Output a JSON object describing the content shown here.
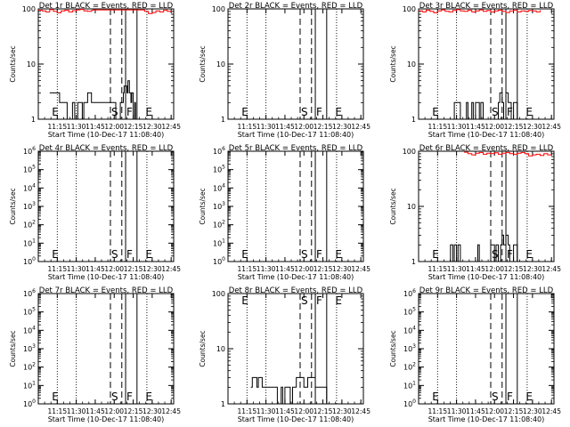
{
  "page": {
    "xlabel": "Start Time (10-Dec-17 11:08:40)",
    "ylabel": "Counts/sec",
    "x_ticks": [
      "11:15",
      "11:30",
      "11:45",
      "12:00",
      "12:15",
      "12:30",
      "12:45"
    ],
    "marker_labels": [
      "E",
      "S",
      "F",
      "E"
    ],
    "colors": {
      "events": "#000000",
      "lld": "#ff0000",
      "background": "#ffffff"
    }
  },
  "chart_data": [
    {
      "type": "line",
      "title": "Det 1r BLACK = Events, RED = LLD",
      "y_scale": "log",
      "ylim": [
        1,
        100
      ],
      "yticks": [
        {
          "v": 1,
          "label": "1"
        },
        {
          "v": 10,
          "label": "10"
        },
        {
          "v": 100,
          "label": "100"
        }
      ],
      "markers": [
        {
          "label": "E",
          "t": 11.167
        },
        {
          "label": "S",
          "t": 11.95
        },
        {
          "label": "F",
          "t": 12.15
        },
        {
          "label": "E",
          "t": 12.4
        }
      ],
      "series": [
        {
          "role": "events",
          "x": [
            11.15,
            11.2,
            11.23,
            11.25,
            11.27,
            11.28,
            11.33,
            11.35,
            11.38,
            11.42,
            11.45,
            11.48,
            11.52,
            11.55,
            11.58,
            11.6,
            11.62,
            11.65,
            11.7,
            11.75,
            11.8,
            11.85,
            11.9,
            11.95,
            12.0,
            12.02,
            12.05,
            12.07,
            12.08,
            12.1,
            12.12,
            12.13,
            12.15,
            12.17,
            12.18,
            12.2,
            12.22,
            12.23,
            12.25,
            12.27,
            12.28,
            12.3,
            12.35
          ],
          "y": [
            3,
            3,
            3,
            3,
            3,
            2,
            2,
            2,
            1,
            1,
            2,
            1,
            2,
            2,
            1,
            2,
            2,
            3,
            2,
            2,
            2,
            2,
            2,
            2,
            2,
            1,
            1,
            1,
            2,
            2,
            3,
            4,
            4,
            3,
            5,
            3,
            2,
            3,
            1,
            2,
            1,
            1,
            1
          ]
        },
        {
          "role": "lld",
          "x": [
            11.0,
            11.05,
            11.1,
            11.15,
            11.2,
            11.25,
            11.3,
            11.35,
            11.4,
            11.45,
            11.5,
            11.55,
            11.6,
            11.65,
            11.7,
            11.72,
            12.4,
            12.45,
            12.5,
            12.55,
            12.6,
            12.65,
            12.7,
            12.75
          ],
          "y": [
            95,
            92,
            88,
            97,
            90,
            85,
            92,
            95,
            88,
            93,
            96,
            98,
            92,
            90,
            94,
            96,
            90,
            82,
            86,
            92,
            88,
            95,
            90,
            92
          ]
        }
      ]
    },
    {
      "type": "line",
      "title": "Det 2r BLACK = Events, RED = LLD",
      "y_scale": "log",
      "ylim": [
        1,
        100
      ],
      "yticks": [
        {
          "v": 1,
          "label": "1"
        },
        {
          "v": 10,
          "label": "10"
        },
        {
          "v": 100,
          "label": "100"
        }
      ],
      "markers": [
        {
          "label": "E",
          "t": 11.167
        },
        {
          "label": "S",
          "t": 11.95
        },
        {
          "label": "F",
          "t": 12.15
        },
        {
          "label": "E",
          "t": 12.4
        }
      ],
      "series": []
    },
    {
      "type": "line",
      "title": "Det 3r BLACK = Events, RED = LLD",
      "y_scale": "log",
      "ylim": [
        1,
        100
      ],
      "yticks": [
        {
          "v": 1,
          "label": "1"
        },
        {
          "v": 10,
          "label": "10"
        },
        {
          "v": 100,
          "label": "100"
        }
      ],
      "markers": [
        {
          "label": "E",
          "t": 11.167
        },
        {
          "label": "S",
          "t": 11.95
        },
        {
          "label": "F",
          "t": 12.15
        },
        {
          "label": "E",
          "t": 12.4
        }
      ],
      "series": [
        {
          "role": "events",
          "x": [
            11.45,
            11.47,
            11.5,
            11.55,
            11.6,
            11.63,
            11.65,
            11.7,
            11.72,
            11.75,
            11.8,
            11.82,
            11.85,
            11.9,
            11.95,
            12.02,
            12.05,
            12.07,
            12.1,
            12.12,
            12.15,
            12.18,
            12.22,
            12.25,
            12.3
          ],
          "y": [
            1,
            2,
            2,
            1,
            1,
            2,
            1,
            2,
            1,
            2,
            1,
            2,
            1,
            1,
            1,
            1,
            2,
            3,
            2,
            1,
            3,
            2,
            1,
            2,
            1
          ]
        },
        {
          "role": "lld",
          "x": [
            11.0,
            11.05,
            11.1,
            11.15,
            11.2,
            11.25,
            11.3,
            11.35,
            11.4,
            11.45,
            11.5,
            11.55,
            11.6,
            11.65,
            11.7,
            11.75,
            11.8,
            11.85,
            11.9,
            11.95,
            12.0,
            12.05,
            12.1,
            12.15,
            12.2,
            12.25,
            12.3,
            12.35,
            12.4,
            12.45,
            12.5,
            12.55,
            12.6
          ],
          "y": [
            92,
            88,
            95,
            90,
            85,
            92,
            96,
            90,
            88,
            94,
            97,
            92,
            90,
            95,
            88,
            92,
            96,
            90,
            94,
            88,
            92,
            95,
            90,
            86,
            92,
            95,
            88,
            92,
            90,
            94,
            92,
            88,
            95
          ]
        }
      ]
    },
    {
      "type": "line",
      "title": "Det 4r BLACK = Events, RED = LLD",
      "y_scale": "log",
      "ylim": [
        1,
        1000000
      ],
      "yticks": [
        {
          "v": 1,
          "label": "10^0"
        },
        {
          "v": 10,
          "label": "10^1"
        },
        {
          "v": 100,
          "label": "10^2"
        },
        {
          "v": 1000,
          "label": "10^3"
        },
        {
          "v": 10000,
          "label": "10^4"
        },
        {
          "v": 100000,
          "label": "10^5"
        },
        {
          "v": 1000000,
          "label": "10^6"
        }
      ],
      "markers": [
        {
          "label": "E",
          "t": 11.167
        },
        {
          "label": "S",
          "t": 11.95
        },
        {
          "label": "F",
          "t": 12.15
        },
        {
          "label": "E",
          "t": 12.4
        }
      ],
      "series": []
    },
    {
      "type": "line",
      "title": "Det 5r BLACK = Events, RED = LLD",
      "y_scale": "log",
      "ylim": [
        1,
        1000000
      ],
      "yticks": [
        {
          "v": 1,
          "label": "10^0"
        },
        {
          "v": 10,
          "label": "10^1"
        },
        {
          "v": 100,
          "label": "10^2"
        },
        {
          "v": 1000,
          "label": "10^3"
        },
        {
          "v": 10000,
          "label": "10^4"
        },
        {
          "v": 100000,
          "label": "10^5"
        },
        {
          "v": 1000000,
          "label": "10^6"
        }
      ],
      "markers": [
        {
          "label": "E",
          "t": 11.167
        },
        {
          "label": "S",
          "t": 11.95
        },
        {
          "label": "F",
          "t": 12.15
        },
        {
          "label": "E",
          "t": 12.4
        }
      ],
      "series": []
    },
    {
      "type": "line",
      "title": "Det 6r BLACK = Events, RED = LLD",
      "y_scale": "log",
      "ylim": [
        1,
        100
      ],
      "yticks": [
        {
          "v": 1,
          "label": "1"
        },
        {
          "v": 10,
          "label": "10"
        },
        {
          "v": 100,
          "label": "100"
        }
      ],
      "markers": [
        {
          "label": "E",
          "t": 11.167
        },
        {
          "label": "S",
          "t": 11.95
        },
        {
          "label": "F",
          "t": 12.15
        },
        {
          "label": "E",
          "t": 12.4
        }
      ],
      "series": [
        {
          "role": "events",
          "x": [
            11.4,
            11.42,
            11.45,
            11.47,
            11.5,
            11.52,
            11.55,
            11.6,
            11.75,
            11.78,
            11.8,
            11.9,
            11.95,
            12.0,
            12.02,
            12.05,
            12.08,
            12.1,
            12.12,
            12.15,
            12.18,
            12.2,
            12.25,
            12.3
          ],
          "y": [
            1,
            2,
            1,
            2,
            1,
            2,
            1,
            1,
            1,
            2,
            1,
            1,
            2,
            1,
            2,
            1,
            2,
            3,
            2,
            3,
            2,
            1,
            2,
            1
          ]
        },
        {
          "role": "lld",
          "x": [
            11.6,
            11.65,
            11.7,
            11.75,
            11.8,
            11.85,
            11.9,
            11.95,
            12.0,
            12.05,
            12.1,
            12.15,
            12.2,
            12.25,
            12.3,
            12.35,
            12.4,
            12.45,
            12.5,
            12.55,
            12.6,
            12.65,
            12.7,
            12.75
          ],
          "y": [
            96,
            90,
            86,
            92,
            95,
            88,
            92,
            90,
            94,
            88,
            92,
            95,
            90,
            88,
            92,
            95,
            90,
            82,
            86,
            88,
            84,
            90,
            86,
            88
          ]
        }
      ]
    },
    {
      "type": "line",
      "title": "Det 7r BLACK = Events, RED = LLD",
      "y_scale": "log",
      "ylim": [
        1,
        1000000
      ],
      "yticks": [
        {
          "v": 1,
          "label": "10^0"
        },
        {
          "v": 10,
          "label": "10^1"
        },
        {
          "v": 100,
          "label": "10^2"
        },
        {
          "v": 1000,
          "label": "10^3"
        },
        {
          "v": 10000,
          "label": "10^4"
        },
        {
          "v": 100000,
          "label": "10^5"
        },
        {
          "v": 1000000,
          "label": "10^6"
        }
      ],
      "markers": [
        {
          "label": "E",
          "t": 11.167
        },
        {
          "label": "S",
          "t": 11.95
        },
        {
          "label": "F",
          "t": 12.15
        },
        {
          "label": "E",
          "t": 12.4
        }
      ],
      "series": []
    },
    {
      "type": "line",
      "title": "Det 8r BLACK = Events, RED = LLD",
      "y_scale": "log",
      "ylim": [
        1,
        100
      ],
      "yticks": [
        {
          "v": 1,
          "label": "1"
        },
        {
          "v": 10,
          "label": "10"
        },
        {
          "v": 100,
          "label": "100"
        }
      ],
      "markers": [
        {
          "label": "E",
          "t": 11.167
        },
        {
          "label": "S",
          "t": 11.95
        },
        {
          "label": "F",
          "t": 12.15
        },
        {
          "label": "E",
          "t": 12.4
        }
      ],
      "series": [
        {
          "role": "events",
          "x": [
            11.3,
            11.32,
            11.35,
            11.38,
            11.4,
            11.45,
            11.5,
            11.55,
            11.6,
            11.65,
            11.7,
            11.72,
            11.75,
            11.8,
            11.82,
            11.85,
            11.9,
            11.95,
            12.0,
            12.02,
            12.05,
            12.1,
            12.15,
            12.18,
            12.2,
            12.25,
            12.3
          ],
          "y": [
            2,
            3,
            3,
            2,
            3,
            2,
            2,
            2,
            2,
            1,
            2,
            1,
            2,
            2,
            1,
            2,
            3,
            3,
            2,
            2,
            3,
            3,
            2,
            2,
            2,
            2,
            1
          ]
        }
      ]
    },
    {
      "type": "line",
      "title": "Det 9r BLACK = Events, RED = LLD",
      "y_scale": "log",
      "ylim": [
        1,
        1000000
      ],
      "yticks": [
        {
          "v": 1,
          "label": "10^0"
        },
        {
          "v": 10,
          "label": "10^1"
        },
        {
          "v": 100,
          "label": "10^2"
        },
        {
          "v": 1000,
          "label": "10^3"
        },
        {
          "v": 10000,
          "label": "10^4"
        },
        {
          "v": 100000,
          "label": "10^5"
        },
        {
          "v": 1000000,
          "label": "10^6"
        }
      ],
      "markers": [
        {
          "label": "E",
          "t": 11.167
        },
        {
          "label": "S",
          "t": 11.95
        },
        {
          "label": "F",
          "t": 12.15
        },
        {
          "label": "E",
          "t": 12.4
        }
      ],
      "series": []
    }
  ]
}
